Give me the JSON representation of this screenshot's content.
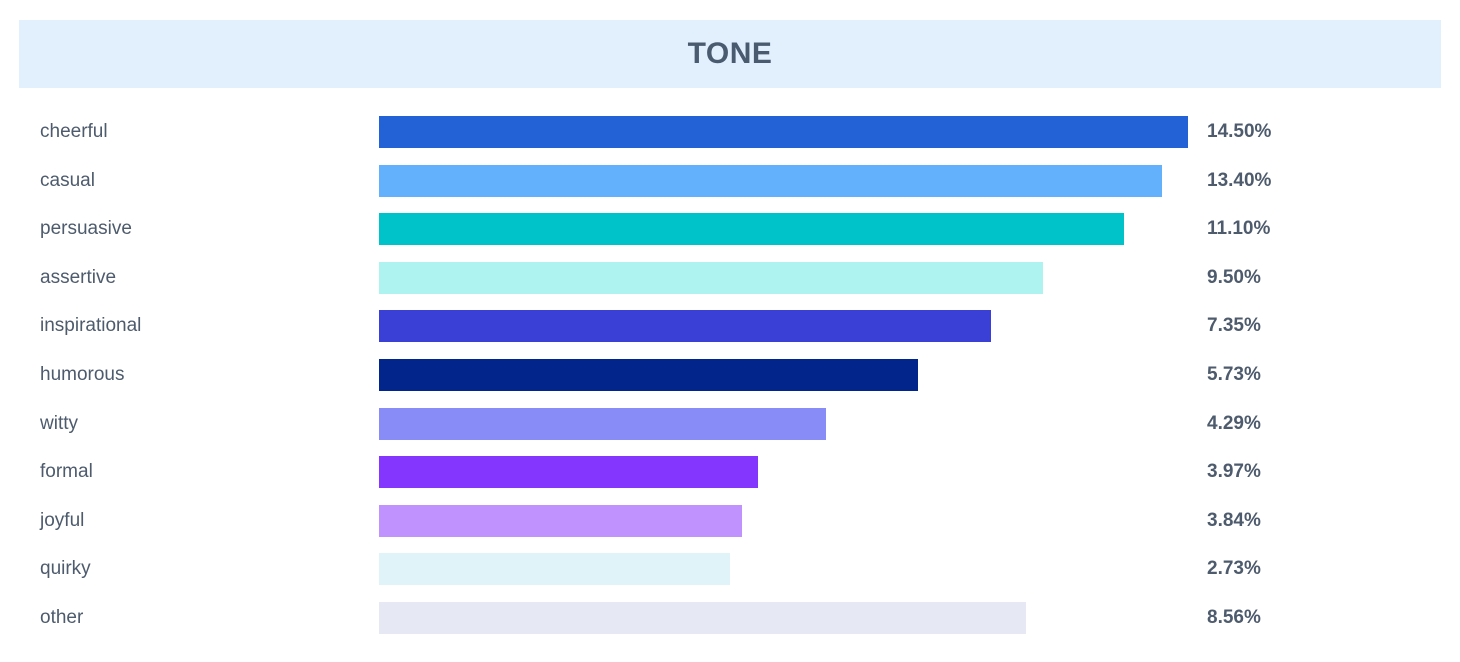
{
  "chart_data": {
    "type": "bar",
    "orientation": "horizontal",
    "title": "TONE",
    "categories": [
      "cheerful",
      "casual",
      "persuasive",
      "assertive",
      "inspirational",
      "humorous",
      "witty",
      "formal",
      "joyful",
      "quirky",
      "other"
    ],
    "values": [
      14.5,
      13.4,
      11.1,
      9.5,
      7.35,
      5.73,
      4.29,
      3.97,
      3.84,
      2.73,
      8.56
    ],
    "value_labels": [
      "14.50%",
      "13.40%",
      "11.10%",
      "9.50%",
      "7.35%",
      "5.73%",
      "4.29%",
      "3.97%",
      "3.84%",
      "2.73%",
      "8.56%"
    ],
    "bar_extents": [
      14.5,
      14.03,
      13.35,
      11.91,
      10.97,
      9.66,
      8.02,
      6.79,
      6.5,
      6.29,
      11.6
    ],
    "colors": [
      "#2362d6",
      "#63b0fd",
      "#00c3c9",
      "#aef3ef",
      "#3a3fd6",
      "#01258a",
      "#878cf7",
      "#8435fe",
      "#c092fe",
      "#dff3f8",
      "#e6e9f4"
    ],
    "xlabel": "",
    "ylabel": "",
    "legend": false,
    "grid": false
  }
}
